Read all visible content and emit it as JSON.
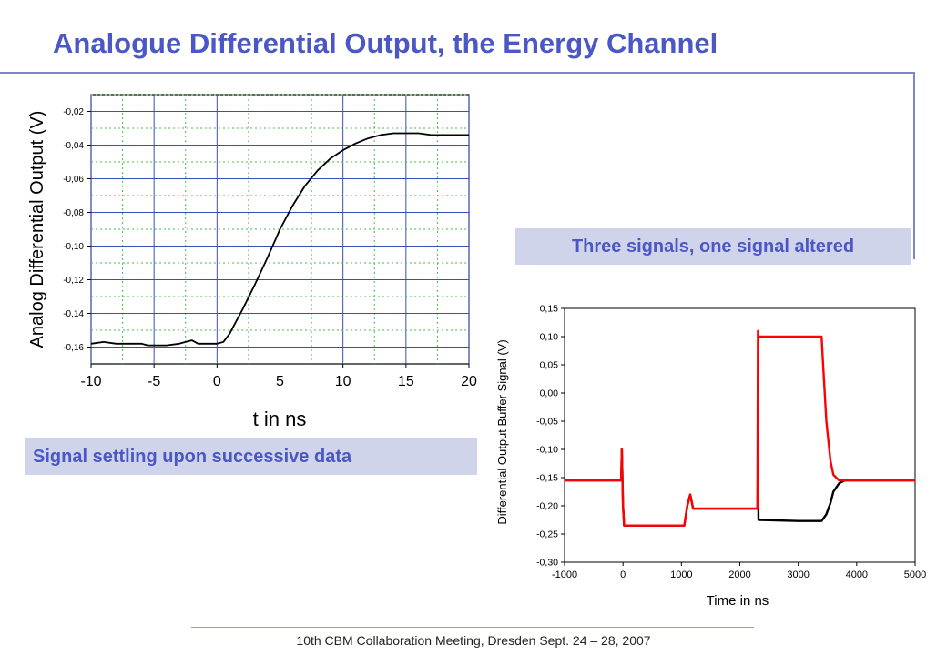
{
  "slide": {
    "title": "Analogue Differential Output, the Energy Channel",
    "caption_right": "Three signals, one signal altered",
    "caption_left": "Signal settling upon successive data",
    "footer": "10th CBM Collaboration Meeting, Dresden Sept. 24 – 28, 2007"
  },
  "chart_data": [
    {
      "type": "line",
      "title": "",
      "xlabel": "t in ns",
      "ylabel": "Analog Differential Output (V)",
      "xlim": [
        -10,
        20
      ],
      "ylim": [
        -0.17,
        -0.01
      ],
      "xticks": [
        -10,
        -5,
        0,
        5,
        10,
        15,
        20
      ],
      "xtick_labels": [
        "-10",
        "-5",
        "0",
        "5",
        "10",
        "15",
        "20"
      ],
      "yticks": [
        -0.16,
        -0.14,
        -0.12,
        -0.1,
        -0.08,
        -0.06,
        -0.04,
        -0.02
      ],
      "ytick_labels": [
        "-0,16",
        "-0,14",
        "-0,12",
        "-0,10",
        "-0,08",
        "-0,06",
        "-0,04",
        "-0,02"
      ],
      "grid": true,
      "series": [
        {
          "color": "#000000",
          "x": [
            -10,
            -9,
            -8,
            -7,
            -6,
            -5.5,
            -5,
            -4,
            -3,
            -2.5,
            -2,
            -1.5,
            -1,
            0,
            0.5,
            1,
            1.5,
            2,
            3,
            4,
            5,
            6,
            7,
            8,
            9,
            10,
            11,
            12,
            13,
            14,
            15,
            16,
            17,
            18,
            19,
            20
          ],
          "y": [
            -0.158,
            -0.157,
            -0.158,
            -0.158,
            -0.158,
            -0.159,
            -0.159,
            -0.159,
            -0.158,
            -0.157,
            -0.156,
            -0.158,
            -0.158,
            -0.158,
            -0.157,
            -0.152,
            -0.145,
            -0.138,
            -0.123,
            -0.107,
            -0.09,
            -0.076,
            -0.064,
            -0.055,
            -0.048,
            -0.043,
            -0.039,
            -0.036,
            -0.034,
            -0.033,
            -0.033,
            -0.033,
            -0.034,
            -0.034,
            -0.034,
            -0.034
          ]
        }
      ]
    },
    {
      "type": "line",
      "title": "",
      "xlabel": "Time in ns",
      "ylabel": "Differential Output Buffer Signal (V)",
      "xlim": [
        -1000,
        5000
      ],
      "ylim": [
        -0.3,
        0.15
      ],
      "xticks": [
        -1000,
        0,
        1000,
        2000,
        3000,
        4000,
        5000
      ],
      "xtick_labels": [
        "-1000",
        "0",
        "1000",
        "2000",
        "3000",
        "4000",
        "5000"
      ],
      "yticks": [
        -0.3,
        -0.25,
        -0.2,
        -0.15,
        -0.1,
        -0.05,
        0.0,
        0.05,
        0.1,
        0.15
      ],
      "ytick_labels": [
        "-0,30",
        "-0,25",
        "-0,20",
        "-0,15",
        "-0,10",
        "-0,05",
        "0,00",
        "0,05",
        "0,10",
        "0,15"
      ],
      "grid": false,
      "series": [
        {
          "color": "#000000",
          "x": [
            -1000,
            -30,
            -20,
            0,
            20,
            1050,
            1100,
            1150,
            1200,
            2300,
            2310,
            2320,
            2340,
            3000,
            3400,
            3480,
            3550,
            3600,
            3700,
            3800,
            5000
          ],
          "y": [
            -0.155,
            -0.155,
            -0.1,
            -0.2,
            -0.235,
            -0.235,
            -0.2,
            -0.18,
            -0.205,
            -0.205,
            -0.14,
            -0.225,
            -0.225,
            -0.227,
            -0.227,
            -0.215,
            -0.195,
            -0.175,
            -0.16,
            -0.155,
            -0.155
          ]
        },
        {
          "color": "#ff0000",
          "x": [
            -1000,
            -30,
            -20,
            0,
            20,
            1050,
            1100,
            1150,
            1200,
            2300,
            2310,
            2320,
            3400,
            3420,
            3480,
            3550,
            3600,
            3700,
            5000
          ],
          "y": [
            -0.155,
            -0.155,
            -0.1,
            -0.2,
            -0.235,
            -0.235,
            -0.2,
            -0.18,
            -0.205,
            -0.205,
            0.11,
            0.1,
            0.1,
            0.06,
            -0.05,
            -0.12,
            -0.145,
            -0.155,
            -0.155
          ]
        }
      ]
    }
  ]
}
